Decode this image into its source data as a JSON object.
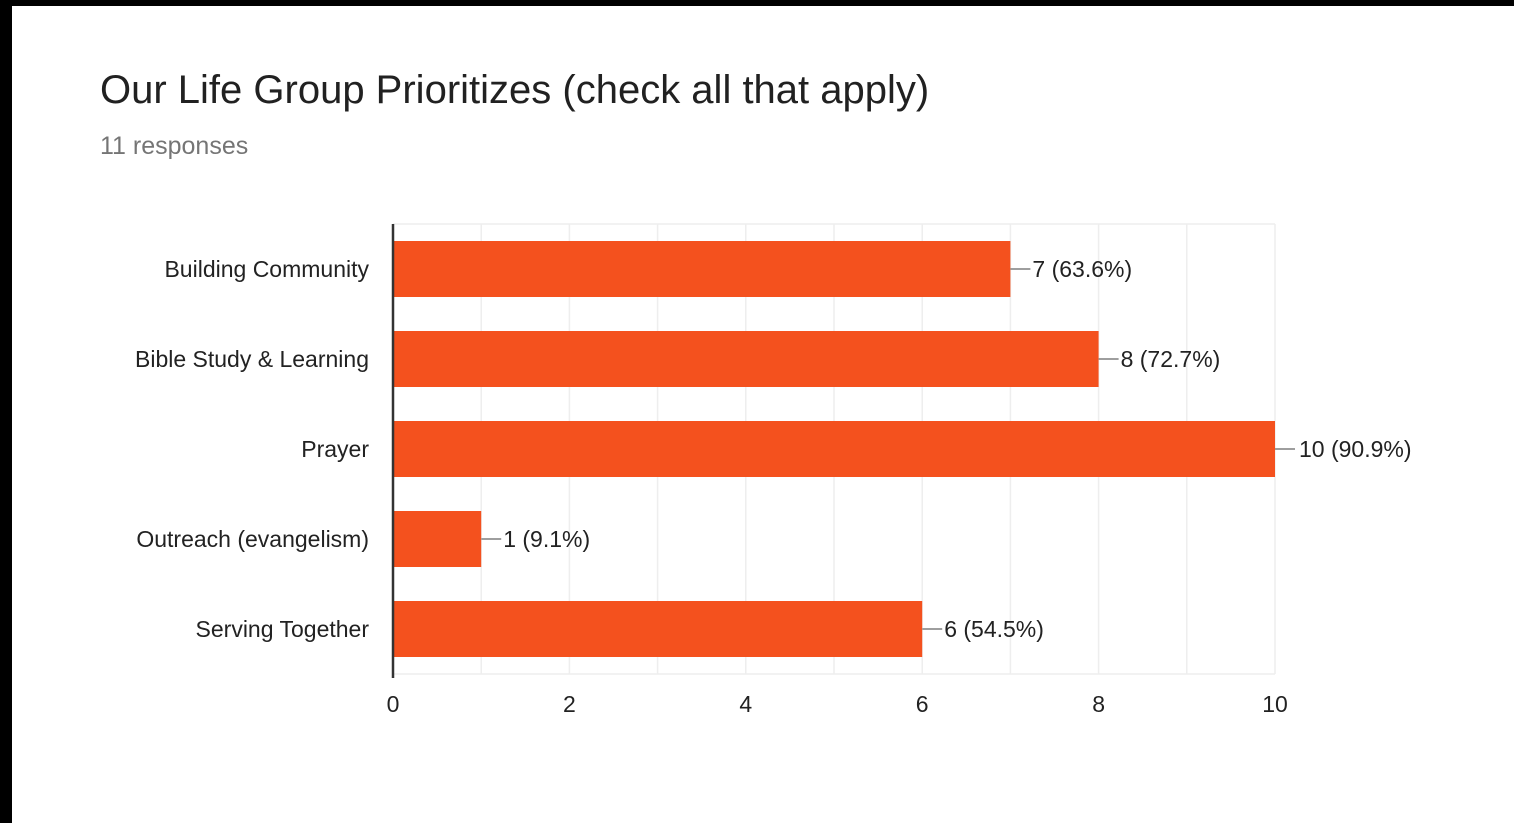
{
  "title": "Our Life Group Prioritizes (check all that apply)",
  "subtitle": "11 responses",
  "colors": {
    "bar": "#f4511e",
    "grid": "#eeeeee",
    "axis": "#333333",
    "text": "#222222"
  },
  "chart_data": {
    "type": "bar",
    "orientation": "horizontal",
    "categories": [
      "Building Community",
      "Bible Study & Learning",
      "Prayer",
      "Outreach (evangelism)",
      "Serving Together"
    ],
    "values": [
      7,
      8,
      10,
      1,
      6
    ],
    "data_labels": [
      "7 (63.6%)",
      "8 (72.7%)",
      "10 (90.9%)",
      "1 (9.1%)",
      "6 (54.5%)"
    ],
    "xlim": [
      0,
      10
    ],
    "xticks": [
      0,
      2,
      4,
      6,
      8,
      10
    ],
    "xtick_labels": [
      "0",
      "2",
      "4",
      "6",
      "8",
      "10"
    ],
    "grid": true,
    "legend": "none"
  }
}
